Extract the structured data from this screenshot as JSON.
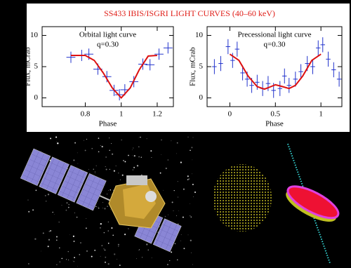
{
  "title": "SS433 IBIS/ISGRI LIGHT CURVES (40–60 keV)",
  "chart_data": [
    {
      "type": "scatter",
      "annotations": [
        "Orbital light curve",
        "q=0.30"
      ],
      "xlabel": "Phase",
      "ylabel": "Flux, mCrab",
      "xlim": [
        0.56,
        1.29
      ],
      "ylim": [
        -1.4,
        11.4
      ],
      "xticks": [
        0.8,
        1,
        1.2
      ],
      "yticks": [
        0,
        5,
        10
      ],
      "series": [
        {
          "type": "errorbar",
          "color": "#2233cc",
          "xerr": 0.025,
          "x": [
            0.72,
            0.78,
            0.82,
            0.87,
            0.92,
            0.96,
            0.99,
            1.02,
            1.07,
            1.12,
            1.16,
            1.21,
            1.26
          ],
          "values": [
            6.5,
            6.8,
            7.0,
            4.6,
            3.4,
            1.2,
            0.5,
            1.3,
            2.6,
            5.4,
            5.3,
            7.0,
            8.0
          ],
          "yerr": [
            0.9,
            0.9,
            0.9,
            0.9,
            0.9,
            0.9,
            0.9,
            0.9,
            0.9,
            0.9,
            0.9,
            0.9,
            0.9
          ]
        },
        {
          "type": "line",
          "color": "#dd1111",
          "x": [
            0.72,
            0.8,
            0.85,
            0.9,
            0.95,
            1.0,
            1.05,
            1.1,
            1.15,
            1.2
          ],
          "values": [
            6.8,
            6.8,
            6.0,
            4.0,
            1.6,
            0.0,
            1.6,
            4.5,
            6.7,
            6.8
          ]
        }
      ]
    },
    {
      "type": "scatter",
      "annotations": [
        "Precessional light curve",
        "q=0.30"
      ],
      "xlabel": "Phase",
      "ylabel": "Flux, mCrab",
      "xlim": [
        -0.25,
        1.23
      ],
      "ylim": [
        -1.4,
        11.4
      ],
      "xticks": [
        0,
        0.5,
        1
      ],
      "yticks": [
        0,
        5,
        10
      ],
      "series": [
        {
          "type": "errorbar",
          "color": "#2233cc",
          "xerr": 0.025,
          "x": [
            -0.17,
            -0.1,
            -0.02,
            0.03,
            0.08,
            0.14,
            0.19,
            0.24,
            0.3,
            0.36,
            0.42,
            0.48,
            0.55,
            0.6,
            0.65,
            0.72,
            0.78,
            0.85,
            0.91,
            0.97,
            1.02,
            1.08,
            1.14,
            1.2
          ],
          "values": [
            5.0,
            5.5,
            8.2,
            6.0,
            7.8,
            4.0,
            3.0,
            2.0,
            2.5,
            1.5,
            2.3,
            1.2,
            1.5,
            3.5,
            2.0,
            3.0,
            4.2,
            5.5,
            5.0,
            8.0,
            8.5,
            6.2,
            4.5,
            3.0
          ],
          "yerr": [
            1.2,
            1.2,
            1.2,
            1.2,
            1.2,
            1.2,
            1.2,
            1.2,
            1.2,
            1.2,
            1.2,
            1.2,
            1.2,
            1.2,
            1.2,
            1.2,
            1.2,
            1.2,
            1.2,
            1.2,
            1.2,
            1.2,
            1.2,
            1.2
          ]
        },
        {
          "type": "line",
          "color": "#dd1111",
          "x": [
            0,
            0.1,
            0.2,
            0.3,
            0.38,
            0.45,
            0.5,
            0.58,
            0.65,
            0.72,
            0.8,
            0.9,
            1.0
          ],
          "values": [
            7.0,
            6.0,
            3.5,
            1.8,
            1.4,
            1.8,
            2.1,
            1.8,
            1.5,
            2.0,
            3.5,
            6.0,
            7.0
          ]
        }
      ]
    }
  ]
}
